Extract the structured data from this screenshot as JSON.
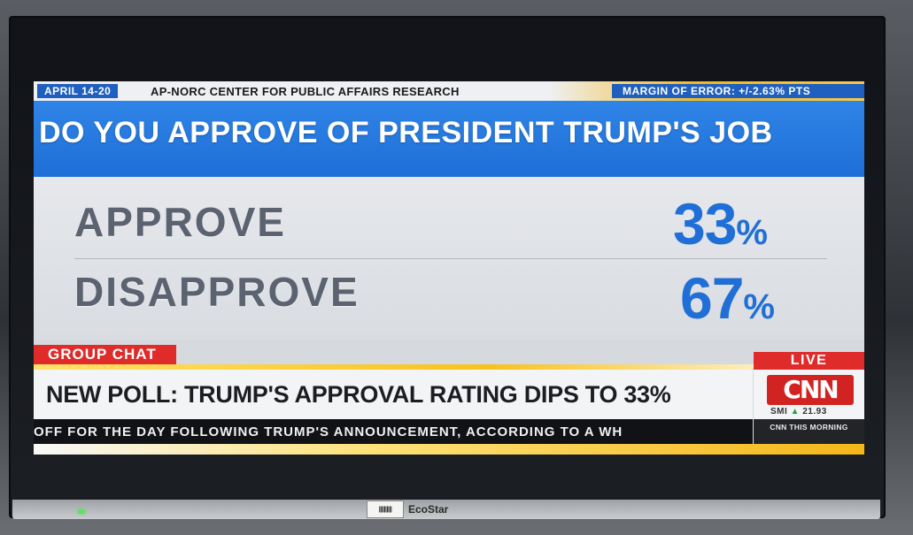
{
  "poll": {
    "date_range": "APRIL 14-20",
    "source": "AP-NORC CENTER FOR PUBLIC AFFAIRS RESEARCH",
    "margin_of_error": "MARGIN OF ERROR: +/-2.63% PTS",
    "question": "DO YOU APPROVE OF PRESIDENT TRUMP'S JOB",
    "results": [
      {
        "label": "APPROVE",
        "value": "33",
        "unit": "%"
      },
      {
        "label": "DISAPPROVE",
        "value": "67",
        "unit": "%"
      }
    ]
  },
  "lower_third": {
    "segment": "GROUP CHAT",
    "live": "LIVE",
    "headline": "NEW POLL: TRUMP'S APPROVAL RATING DIPS TO 33%",
    "network": "CNN",
    "stock_symbol": "SMI",
    "stock_value": "21.93",
    "crawl": "OFF FOR THE DAY FOLLOWING TRUMP'S ANNOUNCEMENT, ACCORDING TO A WH",
    "show": "CNN THIS MORNING"
  },
  "tv": {
    "brand": "EcoStar",
    "sticker": "||||||||||"
  },
  "colors": {
    "cnn_blue": "#1f6fd6",
    "cnn_red": "#e02b2b",
    "accent_yellow": "#f4b81c"
  }
}
